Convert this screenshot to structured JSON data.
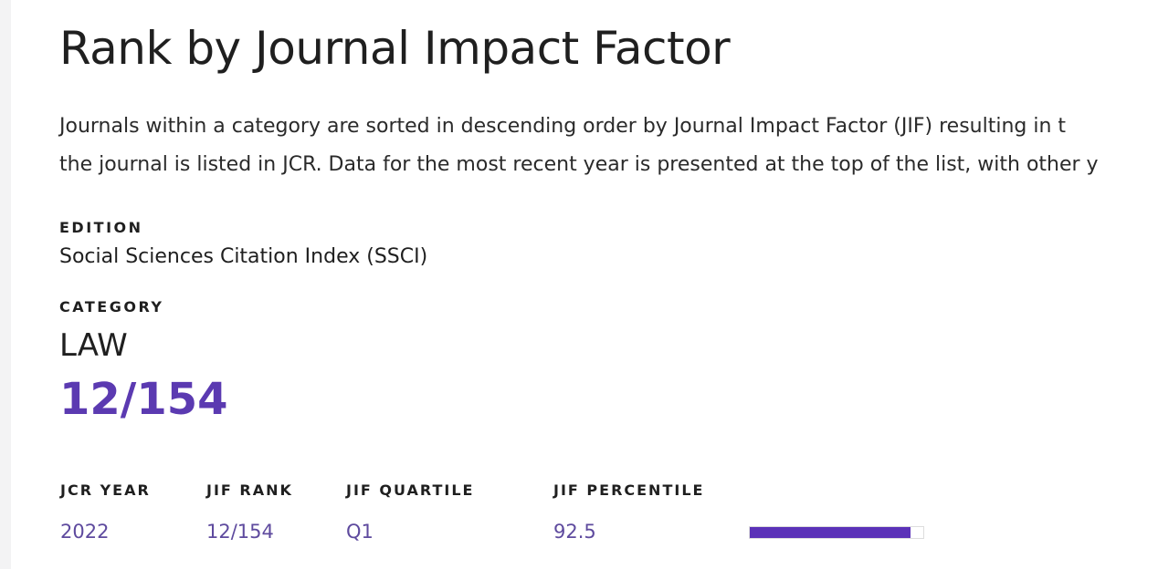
{
  "title": "Rank by Journal Impact Factor",
  "description": [
    "Journals within a category are sorted in descending order by Journal Impact Factor (JIF) resulting in t",
    "the journal is listed in JCR. Data for the most recent year is presented at the top of the list, with other y"
  ],
  "edition": {
    "label": "EDITION",
    "value": "Social Sciences Citation Index (SSCI)"
  },
  "category": {
    "label": "CATEGORY",
    "value": "LAW",
    "rank": "12/154"
  },
  "table": {
    "headers": [
      "JCR YEAR",
      "JIF RANK",
      "JIF QUARTILE",
      "JIF PERCENTILE"
    ],
    "rows": [
      {
        "year": "2022",
        "rank": "12/154",
        "quartile": "Q1",
        "percentile": "92.5",
        "percentile_bar_percent": 92.5
      }
    ]
  },
  "colors": {
    "accent": "#5b3ab1",
    "bar_fill": "#5b32b8"
  }
}
